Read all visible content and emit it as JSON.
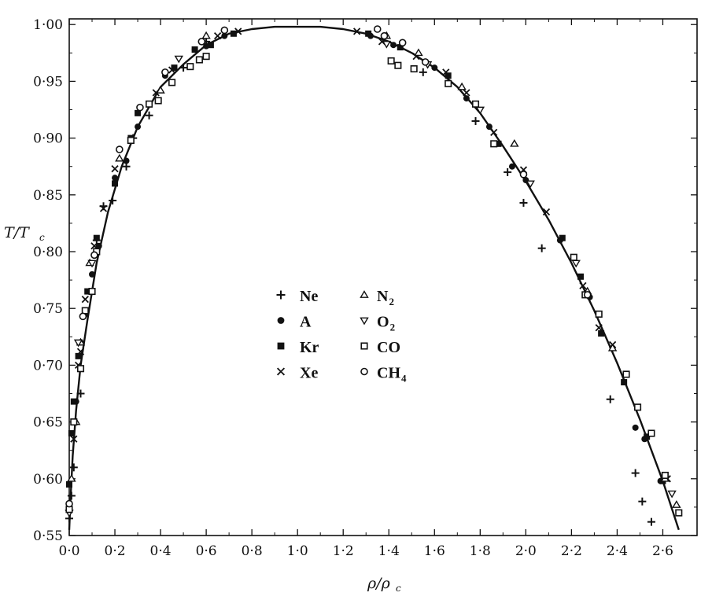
{
  "chart_data": {
    "type": "scatter",
    "xlabel": "ρ/ρ",
    "xlabel_sub": "c",
    "ylabel": "T/T",
    "ylabel_sub": "c",
    "xlim": [
      0.0,
      2.75
    ],
    "ylim": [
      0.55,
      1.005
    ],
    "x_ticks": [
      "0·0",
      "0·2",
      "0·4",
      "0·6",
      "0·8",
      "1·0",
      "1·2",
      "1·4",
      "1·6",
      "1·8",
      "2·0",
      "2·2",
      "2·4",
      "2·6"
    ],
    "x_tick_values": [
      0.0,
      0.2,
      0.4,
      0.6,
      0.8,
      1.0,
      1.2,
      1.4,
      1.6,
      1.8,
      2.0,
      2.2,
      2.4,
      2.6
    ],
    "y_ticks": [
      "0·55",
      "0·60",
      "0·65",
      "0·70",
      "0·75",
      "0·80",
      "0·85",
      "0·90",
      "0·95",
      "1·00"
    ],
    "y_tick_values": [
      0.55,
      0.6,
      0.65,
      0.7,
      0.75,
      0.8,
      0.85,
      0.9,
      0.95,
      1.0
    ],
    "grid": false,
    "legend_position": "center",
    "fit_curve": {
      "critical_density": 1.0,
      "critical_temperature": 0.998,
      "vapor_side": [
        [
          0.0,
          0.555
        ],
        [
          0.005,
          0.58
        ],
        [
          0.015,
          0.62
        ],
        [
          0.03,
          0.66
        ],
        [
          0.05,
          0.7
        ],
        [
          0.08,
          0.74
        ],
        [
          0.12,
          0.79
        ],
        [
          0.17,
          0.835
        ],
        [
          0.23,
          0.875
        ],
        [
          0.3,
          0.91
        ],
        [
          0.4,
          0.945
        ],
        [
          0.5,
          0.965
        ],
        [
          0.6,
          0.982
        ],
        [
          0.7,
          0.992
        ],
        [
          0.8,
          0.996
        ],
        [
          0.9,
          0.998
        ],
        [
          1.0,
          0.998
        ]
      ],
      "liquid_side": [
        [
          1.0,
          0.998
        ],
        [
          1.1,
          0.998
        ],
        [
          1.2,
          0.996
        ],
        [
          1.3,
          0.992
        ],
        [
          1.4,
          0.985
        ],
        [
          1.5,
          0.975
        ],
        [
          1.6,
          0.962
        ],
        [
          1.7,
          0.945
        ],
        [
          1.8,
          0.922
        ],
        [
          1.9,
          0.893
        ],
        [
          2.0,
          0.862
        ],
        [
          2.1,
          0.828
        ],
        [
          2.2,
          0.79
        ],
        [
          2.3,
          0.748
        ],
        [
          2.4,
          0.702
        ],
        [
          2.5,
          0.652
        ],
        [
          2.6,
          0.598
        ],
        [
          2.67,
          0.555
        ]
      ]
    },
    "series": [
      {
        "name": "Ne",
        "name_sub": "",
        "marker": "plus",
        "points": [
          [
            0.0,
            0.565
          ],
          [
            0.01,
            0.585
          ],
          [
            0.02,
            0.61
          ],
          [
            0.05,
            0.675
          ],
          [
            0.12,
            0.81
          ],
          [
            0.15,
            0.84
          ],
          [
            0.19,
            0.845
          ],
          [
            0.25,
            0.875
          ],
          [
            0.28,
            0.9
          ],
          [
            0.35,
            0.92
          ],
          [
            0.6,
            0.985
          ],
          [
            0.5,
            0.962
          ],
          [
            1.55,
            0.958
          ],
          [
            1.78,
            0.915
          ],
          [
            1.92,
            0.87
          ],
          [
            1.99,
            0.843
          ],
          [
            2.07,
            0.803
          ],
          [
            2.37,
            0.67
          ],
          [
            2.48,
            0.605
          ],
          [
            2.51,
            0.58
          ],
          [
            2.55,
            0.562
          ]
        ]
      },
      {
        "name": "A",
        "name_sub": "",
        "marker": "dot",
        "points": [
          [
            0.02,
            0.65
          ],
          [
            0.03,
            0.668
          ],
          [
            0.05,
            0.72
          ],
          [
            0.07,
            0.745
          ],
          [
            0.1,
            0.78
          ],
          [
            0.13,
            0.805
          ],
          [
            0.2,
            0.865
          ],
          [
            0.25,
            0.88
          ],
          [
            0.3,
            0.91
          ],
          [
            0.42,
            0.955
          ],
          [
            0.55,
            0.978
          ],
          [
            0.6,
            0.981
          ],
          [
            0.68,
            0.99
          ],
          [
            1.32,
            0.99
          ],
          [
            1.42,
            0.982
          ],
          [
            1.6,
            0.962
          ],
          [
            1.74,
            0.935
          ],
          [
            1.84,
            0.91
          ],
          [
            1.94,
            0.875
          ],
          [
            2.0,
            0.863
          ],
          [
            2.15,
            0.81
          ],
          [
            2.28,
            0.76
          ],
          [
            2.38,
            0.715
          ],
          [
            2.48,
            0.645
          ],
          [
            2.52,
            0.635
          ],
          [
            2.59,
            0.598
          ]
        ]
      },
      {
        "name": "Kr",
        "name_sub": "",
        "marker": "square",
        "points": [
          [
            0.0,
            0.595
          ],
          [
            0.01,
            0.64
          ],
          [
            0.02,
            0.668
          ],
          [
            0.04,
            0.708
          ],
          [
            0.08,
            0.765
          ],
          [
            0.12,
            0.812
          ],
          [
            0.2,
            0.86
          ],
          [
            0.27,
            0.9
          ],
          [
            0.3,
            0.922
          ],
          [
            0.46,
            0.962
          ],
          [
            0.55,
            0.978
          ],
          [
            0.62,
            0.982
          ],
          [
            0.72,
            0.992
          ],
          [
            1.31,
            0.992
          ],
          [
            1.45,
            0.98
          ],
          [
            1.66,
            0.955
          ],
          [
            1.88,
            0.895
          ],
          [
            2.16,
            0.812
          ],
          [
            2.24,
            0.778
          ],
          [
            2.33,
            0.728
          ],
          [
            2.43,
            0.685
          ],
          [
            2.53,
            0.637
          ],
          [
            2.6,
            0.598
          ]
        ]
      },
      {
        "name": "Xe",
        "name_sub": "",
        "marker": "cross",
        "points": [
          [
            0.02,
            0.635
          ],
          [
            0.04,
            0.7
          ],
          [
            0.05,
            0.712
          ],
          [
            0.07,
            0.758
          ],
          [
            0.11,
            0.805
          ],
          [
            0.15,
            0.838
          ],
          [
            0.2,
            0.873
          ],
          [
            0.38,
            0.94
          ],
          [
            0.45,
            0.96
          ],
          [
            0.65,
            0.99
          ],
          [
            0.74,
            0.994
          ],
          [
            1.26,
            0.994
          ],
          [
            1.37,
            0.985
          ],
          [
            1.52,
            0.972
          ],
          [
            1.65,
            0.958
          ],
          [
            1.74,
            0.94
          ],
          [
            1.86,
            0.905
          ],
          [
            1.99,
            0.872
          ],
          [
            2.09,
            0.835
          ],
          [
            2.25,
            0.77
          ],
          [
            2.32,
            0.733
          ],
          [
            2.38,
            0.718
          ],
          [
            2.62,
            0.6
          ]
        ]
      },
      {
        "name": "N",
        "name_sub": "2",
        "marker": "triangle-up",
        "points": [
          [
            0.01,
            0.6
          ],
          [
            0.03,
            0.65
          ],
          [
            0.05,
            0.72
          ],
          [
            0.09,
            0.79
          ],
          [
            0.22,
            0.882
          ],
          [
            0.4,
            0.942
          ],
          [
            0.6,
            0.99
          ],
          [
            1.39,
            0.99
          ],
          [
            1.53,
            0.975
          ],
          [
            1.72,
            0.945
          ],
          [
            1.95,
            0.895
          ],
          [
            2.27,
            0.765
          ],
          [
            2.38,
            0.715
          ],
          [
            2.61,
            0.6
          ],
          [
            2.66,
            0.577
          ]
        ]
      },
      {
        "name": "O",
        "name_sub": "2",
        "marker": "triangle-down",
        "points": [
          [
            0.0,
            0.57
          ],
          [
            0.04,
            0.72
          ],
          [
            0.1,
            0.79
          ],
          [
            0.48,
            0.97
          ],
          [
            1.39,
            0.983
          ],
          [
            1.57,
            0.965
          ],
          [
            1.8,
            0.925
          ],
          [
            2.02,
            0.86
          ],
          [
            2.22,
            0.79
          ],
          [
            2.64,
            0.587
          ]
        ]
      },
      {
        "name": "CO",
        "name_sub": "",
        "marker": "square-open",
        "points": [
          [
            0.0,
            0.573
          ],
          [
            0.02,
            0.65
          ],
          [
            0.05,
            0.697
          ],
          [
            0.07,
            0.748
          ],
          [
            0.1,
            0.765
          ],
          [
            0.12,
            0.8
          ],
          [
            0.27,
            0.898
          ],
          [
            0.35,
            0.93
          ],
          [
            0.39,
            0.933
          ],
          [
            0.45,
            0.949
          ],
          [
            0.53,
            0.963
          ],
          [
            0.57,
            0.969
          ],
          [
            0.6,
            0.972
          ],
          [
            1.41,
            0.968
          ],
          [
            1.44,
            0.964
          ],
          [
            1.51,
            0.961
          ],
          [
            1.66,
            0.948
          ],
          [
            1.78,
            0.93
          ],
          [
            1.86,
            0.895
          ],
          [
            2.21,
            0.795
          ],
          [
            2.26,
            0.762
          ],
          [
            2.32,
            0.745
          ],
          [
            2.44,
            0.692
          ],
          [
            2.49,
            0.663
          ],
          [
            2.55,
            0.64
          ],
          [
            2.61,
            0.603
          ],
          [
            2.67,
            0.57
          ]
        ]
      },
      {
        "name": "CH",
        "name_sub": "4",
        "marker": "circle-open",
        "points": [
          [
            0.0,
            0.578
          ],
          [
            0.06,
            0.743
          ],
          [
            0.11,
            0.797
          ],
          [
            0.22,
            0.89
          ],
          [
            0.31,
            0.927
          ],
          [
            0.42,
            0.958
          ],
          [
            0.58,
            0.985
          ],
          [
            0.68,
            0.995
          ],
          [
            1.35,
            0.996
          ],
          [
            1.38,
            0.99
          ],
          [
            1.46,
            0.984
          ],
          [
            1.56,
            0.967
          ],
          [
            1.99,
            0.868
          ],
          [
            2.27,
            0.762
          ]
        ]
      }
    ]
  }
}
